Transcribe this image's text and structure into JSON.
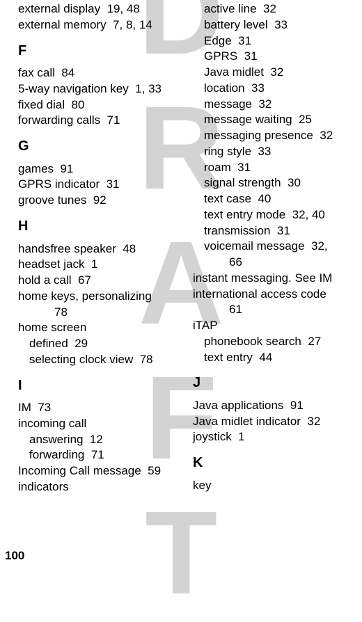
{
  "watermark": "DRAFT",
  "page_number": "100",
  "left_column": {
    "top_entries": [
      {
        "text": "external display",
        "pages": "19, 48"
      },
      {
        "text": "external memory",
        "pages": "7, 8, 14"
      }
    ],
    "sections": [
      {
        "letter": "F",
        "entries": [
          {
            "text": "fax call",
            "pages": "84"
          },
          {
            "text": "5-way navigation key",
            "pages": "1, 33"
          },
          {
            "text": "fixed dial",
            "pages": "80"
          },
          {
            "text": "forwarding calls",
            "pages": "71"
          }
        ]
      },
      {
        "letter": "G",
        "entries": [
          {
            "text": "games",
            "pages": "91"
          },
          {
            "text": "GPRS indicator",
            "pages": "31"
          },
          {
            "text": "groove tunes",
            "pages": "92"
          }
        ]
      },
      {
        "letter": "H",
        "entries": [
          {
            "text": "handsfree speaker",
            "pages": "48"
          },
          {
            "text": "headset jack",
            "pages": "1"
          },
          {
            "text": "hold a call",
            "pages": "67"
          },
          {
            "text": "home keys, personalizing",
            "pages": "",
            "contPages": "78"
          },
          {
            "text": "home screen",
            "pages": "",
            "subs": [
              {
                "text": "defined",
                "pages": "29"
              },
              {
                "text": "selecting clock view",
                "pages": "78"
              }
            ]
          }
        ]
      },
      {
        "letter": "I",
        "entries": [
          {
            "text": "IM",
            "pages": "73"
          },
          {
            "text": "incoming call",
            "pages": "",
            "subs": [
              {
                "text": "answering",
                "pages": "12"
              },
              {
                "text": "forwarding",
                "pages": "71"
              }
            ]
          },
          {
            "text": "Incoming Call message",
            "pages": "59"
          },
          {
            "text": "indicators",
            "pages": ""
          }
        ]
      }
    ]
  },
  "right_column": {
    "indicator_subs": [
      {
        "text": "active line",
        "pages": "32"
      },
      {
        "text": "battery level",
        "pages": "33"
      },
      {
        "text": "Edge",
        "pages": "31"
      },
      {
        "text": "GPRS",
        "pages": "31"
      },
      {
        "text": "Java midlet",
        "pages": "32"
      },
      {
        "text": "location",
        "pages": "33"
      },
      {
        "text": "message",
        "pages": "32"
      },
      {
        "text": "message waiting",
        "pages": "25"
      },
      {
        "text": "messaging presence",
        "pages": "32"
      },
      {
        "text": "ring style",
        "pages": "33"
      },
      {
        "text": "roam",
        "pages": "31"
      },
      {
        "text": "signal strength",
        "pages": "30"
      },
      {
        "text": "text case",
        "pages": "40"
      },
      {
        "text": "text entry mode",
        "pages": "32, 40"
      },
      {
        "text": "transmission",
        "pages": "31"
      },
      {
        "text": "voicemail message",
        "pages": "32,",
        "contPages": "66"
      }
    ],
    "entries_after": [
      {
        "text": "instant messaging. See IM",
        "pages": ""
      },
      {
        "text": "international access code",
        "pages": "",
        "contPages": "61"
      },
      {
        "text": "iTAP",
        "pages": "",
        "subs": [
          {
            "text": "phonebook search",
            "pages": "27"
          },
          {
            "text": "text entry",
            "pages": "44"
          }
        ]
      }
    ],
    "sections": [
      {
        "letter": "J",
        "entries": [
          {
            "text": "Java applications",
            "pages": "91"
          },
          {
            "text": "Java midlet indicator",
            "pages": "32"
          },
          {
            "text": "joystick",
            "pages": "1"
          }
        ]
      },
      {
        "letter": "K",
        "entries": [
          {
            "text": "key",
            "pages": ""
          }
        ]
      }
    ]
  }
}
